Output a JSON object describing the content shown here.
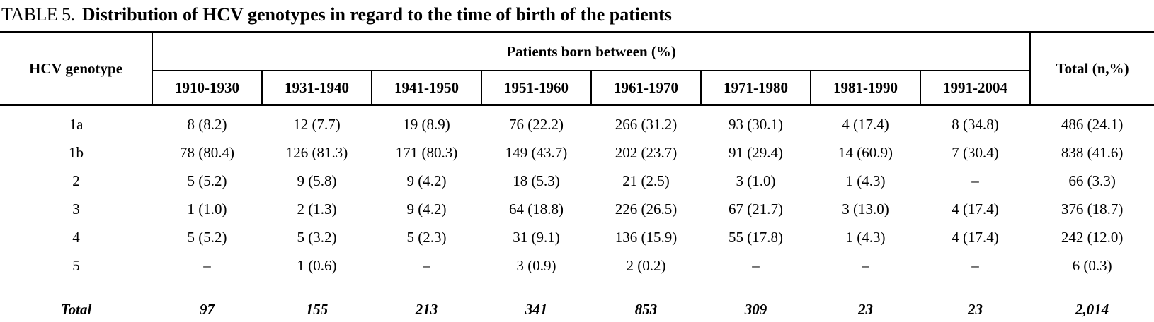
{
  "title": {
    "tag": "TABLE 5.",
    "text": "Distribution of HCV genotypes in regard to the time of birth of the patients"
  },
  "table": {
    "corner_header": "HCV genotype",
    "group_header": "Patients born between (%)",
    "total_header": "Total (n,%)",
    "columns": [
      "1910-1930",
      "1931-1940",
      "1941-1950",
      "1951-1960",
      "1961-1970",
      "1971-1980",
      "1981-1990",
      "1991-2004"
    ],
    "rows": [
      {
        "genotype": "1a",
        "values": [
          "8 (8.2)",
          "12 (7.7)",
          "19 (8.9)",
          "76 (22.2)",
          "266 (31.2)",
          "93 (30.1)",
          "4 (17.4)",
          "8 (34.8)"
        ],
        "total": "486 (24.1)"
      },
      {
        "genotype": "1b",
        "values": [
          "78 (80.4)",
          "126 (81.3)",
          "171 (80.3)",
          "149 (43.7)",
          "202 (23.7)",
          "91 (29.4)",
          "14 (60.9)",
          "7 (30.4)"
        ],
        "total": "838 (41.6)"
      },
      {
        "genotype": "2",
        "values": [
          "5 (5.2)",
          "9 (5.8)",
          "9 (4.2)",
          "18 (5.3)",
          "21 (2.5)",
          "3 (1.0)",
          "1 (4.3)",
          "–"
        ],
        "total": "66 (3.3)"
      },
      {
        "genotype": "3",
        "values": [
          "1 (1.0)",
          "2 (1.3)",
          "9 (4.2)",
          "64 (18.8)",
          "226 (26.5)",
          "67 (21.7)",
          "3 (13.0)",
          "4 (17.4)"
        ],
        "total": "376 (18.7)"
      },
      {
        "genotype": "4",
        "values": [
          "5 (5.2)",
          "5 (3.2)",
          "5 (2.3)",
          "31 (9.1)",
          "136 (15.9)",
          "55 (17.8)",
          "1 (4.3)",
          "4 (17.4)"
        ],
        "total": "242 (12.0)"
      },
      {
        "genotype": "5",
        "values": [
          "–",
          "1 (0.6)",
          "–",
          "3 (0.9)",
          "2 (0.2)",
          "–",
          "–",
          "–"
        ],
        "total": "6 (0.3)"
      }
    ],
    "total_row": {
      "label": "Total",
      "values": [
        "97",
        "155",
        "213",
        "341",
        "853",
        "309",
        "23",
        "23"
      ],
      "total": "2,014"
    }
  },
  "chart_data": {
    "type": "table",
    "title": "TABLE 5. Distribution of HCV genotypes in regard to the time of birth of the patients",
    "column_group_label": "Patients born between (%)",
    "columns": [
      "HCV genotype",
      "1910-1930",
      "1931-1940",
      "1941-1950",
      "1951-1960",
      "1961-1970",
      "1971-1980",
      "1981-1990",
      "1991-2004",
      "Total (n,%)"
    ],
    "rows": [
      [
        "1a",
        "8 (8.2)",
        "12 (7.7)",
        "19 (8.9)",
        "76 (22.2)",
        "266 (31.2)",
        "93 (30.1)",
        "4 (17.4)",
        "8 (34.8)",
        "486 (24.1)"
      ],
      [
        "1b",
        "78 (80.4)",
        "126 (81.3)",
        "171 (80.3)",
        "149 (43.7)",
        "202 (23.7)",
        "91 (29.4)",
        "14 (60.9)",
        "7 (30.4)",
        "838 (41.6)"
      ],
      [
        "2",
        "5 (5.2)",
        "9 (5.8)",
        "9 (4.2)",
        "18 (5.3)",
        "21 (2.5)",
        "3 (1.0)",
        "1 (4.3)",
        "–",
        "66 (3.3)"
      ],
      [
        "3",
        "1 (1.0)",
        "2 (1.3)",
        "9 (4.2)",
        "64 (18.8)",
        "226 (26.5)",
        "67 (21.7)",
        "3 (13.0)",
        "4 (17.4)",
        "376 (18.7)"
      ],
      [
        "4",
        "5 (5.2)",
        "5 (3.2)",
        "5 (2.3)",
        "31 (9.1)",
        "136 (15.9)",
        "55 (17.8)",
        "1 (4.3)",
        "4 (17.4)",
        "242 (12.0)"
      ],
      [
        "5",
        "–",
        "1 (0.6)",
        "–",
        "3 (0.9)",
        "2 (0.2)",
        "–",
        "–",
        "–",
        "6 (0.3)"
      ],
      [
        "Total",
        "97",
        "155",
        "213",
        "341",
        "853",
        "309",
        "23",
        "23",
        "2,014"
      ]
    ]
  }
}
